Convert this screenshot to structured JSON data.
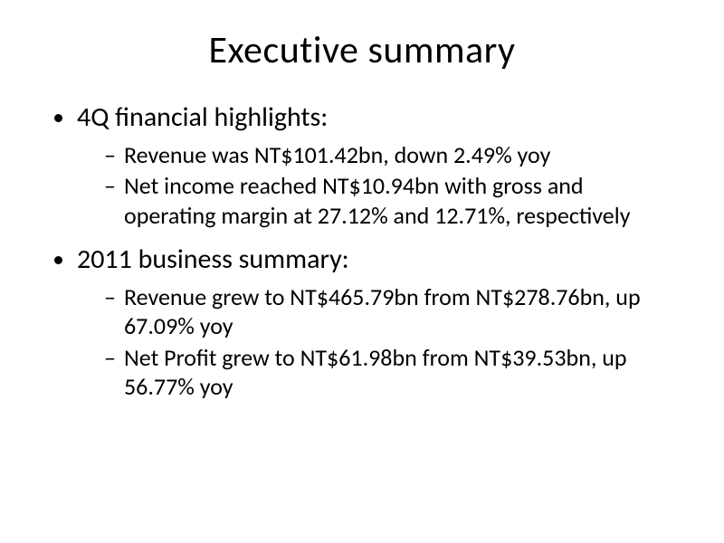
{
  "slide": {
    "title": "Executive summary",
    "title_fontsize": 42,
    "background_color": "#ffffff",
    "text_color": "#000000",
    "font_family": "Calibri",
    "bullets": [
      {
        "text": "4Q financial highlights:",
        "fontsize": 30,
        "sub": [
          {
            "text": "Revenue was NT$101.42bn, down 2.49% yoy",
            "fontsize": 26
          },
          {
            "text": "Net income reached NT$10.94bn with gross and operating margin at 27.12% and 12.71%, respectively",
            "fontsize": 26
          }
        ]
      },
      {
        "text": "2011 business summary:",
        "fontsize": 30,
        "sub": [
          {
            "text": "Revenue grew to NT$465.79bn from NT$278.76bn, up 67.09% yoy",
            "fontsize": 26
          },
          {
            "text": "Net Profit grew to NT$61.98bn from NT$39.53bn, up 56.77% yoy",
            "fontsize": 26
          }
        ]
      }
    ]
  }
}
